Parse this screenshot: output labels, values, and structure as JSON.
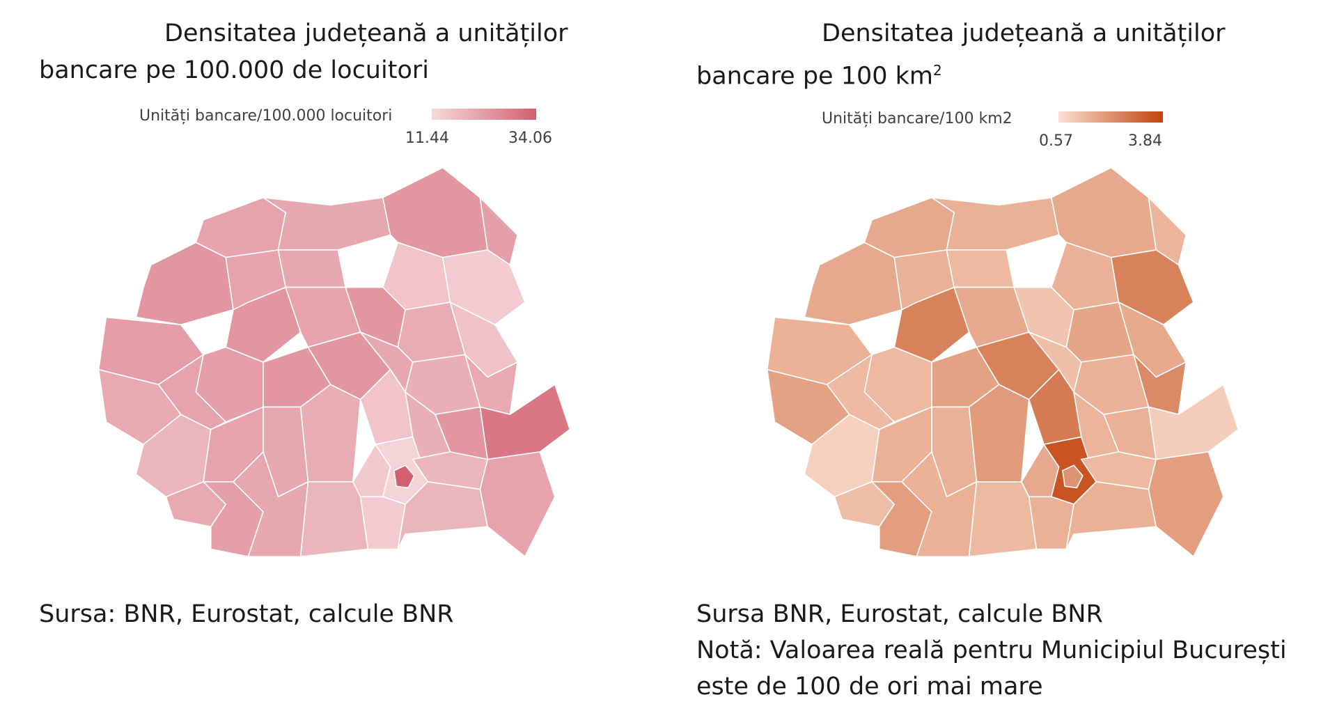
{
  "left": {
    "title_main": "Densitatea județeană a unităților bancare pe 100.000 de locuitori",
    "legend_label": "Unități bancare/100.000 locuitori",
    "legend_min": "11.44",
    "legend_max": "34.06",
    "color_low": "#f6dadd",
    "color_high": "#d2606e",
    "border_color": "#ffffff",
    "source": "Sursa:  BNR, Eurostat, calcule BNR",
    "counties": [
      {
        "id": "SM",
        "v": 0.45
      },
      {
        "id": "MM",
        "v": 0.42
      },
      {
        "id": "SV",
        "v": 0.55
      },
      {
        "id": "BT",
        "v": 0.48
      },
      {
        "id": "BH",
        "v": 0.55
      },
      {
        "id": "SJ",
        "v": 0.45
      },
      {
        "id": "BN",
        "v": 0.42
      },
      {
        "id": "NT",
        "v": 0.18
      },
      {
        "id": "IS",
        "v": 0.12
      },
      {
        "id": "AR",
        "v": 0.5
      },
      {
        "id": "CJ",
        "v": 0.55
      },
      {
        "id": "MS",
        "v": 0.45
      },
      {
        "id": "HR",
        "v": 0.55
      },
      {
        "id": "BC",
        "v": 0.38
      },
      {
        "id": "VS",
        "v": 0.2
      },
      {
        "id": "TM",
        "v": 0.4
      },
      {
        "id": "AB",
        "v": 0.48
      },
      {
        "id": "SB",
        "v": 0.55
      },
      {
        "id": "BV",
        "v": 0.55
      },
      {
        "id": "CV",
        "v": 0.42
      },
      {
        "id": "VN",
        "v": 0.35
      },
      {
        "id": "GL",
        "v": 0.4
      },
      {
        "id": "CS",
        "v": 0.3
      },
      {
        "id": "HD",
        "v": 0.45
      },
      {
        "id": "VL",
        "v": 0.42
      },
      {
        "id": "AG",
        "v": 0.38
      },
      {
        "id": "PH",
        "v": 0.18
      },
      {
        "id": "BZ",
        "v": 0.35
      },
      {
        "id": "BR",
        "v": 0.55
      },
      {
        "id": "TL",
        "v": 0.8
      },
      {
        "id": "MH",
        "v": 0.4
      },
      {
        "id": "GJ",
        "v": 0.45
      },
      {
        "id": "DJ",
        "v": 0.48
      },
      {
        "id": "OT",
        "v": 0.42
      },
      {
        "id": "DB",
        "v": 0.15
      },
      {
        "id": "IF",
        "v": 0.05
      },
      {
        "id": "B",
        "v": 1.0
      },
      {
        "id": "GR",
        "v": 0.12
      },
      {
        "id": "TR",
        "v": 0.3
      },
      {
        "id": "IL",
        "v": 0.3
      },
      {
        "id": "CL",
        "v": 0.3
      },
      {
        "id": "CT",
        "v": 0.45
      }
    ]
  },
  "right": {
    "title_main": "Densitatea județeană a unităților bancare pe 100 km",
    "title_sup": "2",
    "legend_label": "Unități bancare/100 km2",
    "legend_min": "0.57",
    "legend_max": "3.84",
    "color_low": "#fbe0d2",
    "color_high": "#c1440e",
    "border_color": "#ffffff",
    "source_line1": "Sursa BNR, Eurostat, calcule BNR",
    "source_line2": "Notă: Valoarea reală pentru Municipiul București",
    "source_line3": "este de 100 de ori mai mare",
    "counties": [
      {
        "id": "SM",
        "v": 0.35
      },
      {
        "id": "MM",
        "v": 0.3
      },
      {
        "id": "SV",
        "v": 0.35
      },
      {
        "id": "BT",
        "v": 0.28
      },
      {
        "id": "BH",
        "v": 0.35
      },
      {
        "id": "SJ",
        "v": 0.3
      },
      {
        "id": "BN",
        "v": 0.25
      },
      {
        "id": "NT",
        "v": 0.3
      },
      {
        "id": "IS",
        "v": 0.6
      },
      {
        "id": "AR",
        "v": 0.3
      },
      {
        "id": "CJ",
        "v": 0.6
      },
      {
        "id": "MS",
        "v": 0.35
      },
      {
        "id": "HR",
        "v": 0.18
      },
      {
        "id": "BC",
        "v": 0.38
      },
      {
        "id": "VS",
        "v": 0.35
      },
      {
        "id": "TM",
        "v": 0.4
      },
      {
        "id": "AB",
        "v": 0.25
      },
      {
        "id": "SB",
        "v": 0.4
      },
      {
        "id": "BV",
        "v": 0.6
      },
      {
        "id": "CV",
        "v": 0.22
      },
      {
        "id": "VN",
        "v": 0.3
      },
      {
        "id": "GL",
        "v": 0.55
      },
      {
        "id": "CS",
        "v": 0.1
      },
      {
        "id": "HD",
        "v": 0.25
      },
      {
        "id": "VL",
        "v": 0.3
      },
      {
        "id": "AG",
        "v": 0.45
      },
      {
        "id": "PH",
        "v": 0.65
      },
      {
        "id": "BZ",
        "v": 0.28
      },
      {
        "id": "BR",
        "v": 0.3
      },
      {
        "id": "TL",
        "v": 0.12
      },
      {
        "id": "MH",
        "v": 0.22
      },
      {
        "id": "GJ",
        "v": 0.3
      },
      {
        "id": "DJ",
        "v": 0.42
      },
      {
        "id": "OT",
        "v": 0.3
      },
      {
        "id": "DB",
        "v": 0.35
      },
      {
        "id": "IF",
        "v": 0.9
      },
      {
        "id": "B",
        "v": 0.5
      },
      {
        "id": "GR",
        "v": 0.3
      },
      {
        "id": "TR",
        "v": 0.25
      },
      {
        "id": "IL",
        "v": 0.25
      },
      {
        "id": "CL",
        "v": 0.3
      },
      {
        "id": "CT",
        "v": 0.42
      }
    ]
  }
}
